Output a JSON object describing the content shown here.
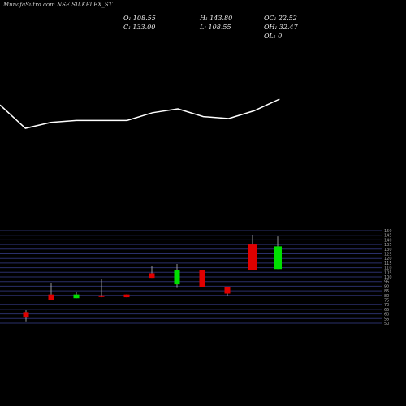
{
  "title": "MunafaSutra.com NSE SILKFLEX_ST",
  "ohlc": {
    "o": "O: 108.55",
    "c": "C: 133.00",
    "h": "H: 143.80",
    "l": "L: 108.55",
    "oc": "OC: 22.52",
    "oh": "OH: 32.47",
    "ol": "OL: 0"
  },
  "colors": {
    "up": "#00e000",
    "down": "#e00000",
    "grid": "#2a2f6a",
    "line": "#ffffff",
    "wick": "#bbbbbb"
  },
  "chart_data": {
    "type": "candlestick",
    "y_ticks": [
      50,
      55,
      60,
      65,
      70,
      75,
      80,
      85,
      90,
      95,
      100,
      105,
      110,
      115,
      120,
      125,
      130,
      135,
      140,
      145,
      150
    ],
    "ylim": [
      50,
      150
    ],
    "candles": [
      {
        "open": 62,
        "high": 64,
        "low": 52,
        "close": 56,
        "dir": "down"
      },
      {
        "open": 81,
        "high": 93,
        "low": 75,
        "close": 75,
        "dir": "down"
      },
      {
        "open": 77,
        "high": 84,
        "low": 77,
        "close": 81,
        "dir": "up"
      },
      {
        "open": 80,
        "high": 98,
        "low": 78,
        "close": 79,
        "dir": "down"
      },
      {
        "open": 81,
        "high": 81,
        "low": 78,
        "close": 78,
        "dir": "down"
      },
      {
        "open": 104,
        "high": 112,
        "low": 99,
        "close": 99,
        "dir": "down"
      },
      {
        "open": 92,
        "high": 114,
        "low": 88,
        "close": 107,
        "dir": "up"
      },
      {
        "open": 107,
        "high": 107,
        "low": 89,
        "close": 89,
        "dir": "down"
      },
      {
        "open": 89,
        "high": 89,
        "low": 79,
        "close": 82,
        "dir": "down"
      },
      {
        "open": 135,
        "high": 145,
        "low": 107,
        "close": 107,
        "dir": "down"
      },
      {
        "open": 108.55,
        "high": 143.8,
        "low": 108.55,
        "close": 133,
        "dir": "up"
      }
    ],
    "line": [
      62,
      50,
      53,
      54,
      54,
      54,
      58,
      60,
      56,
      55,
      59,
      65
    ]
  }
}
